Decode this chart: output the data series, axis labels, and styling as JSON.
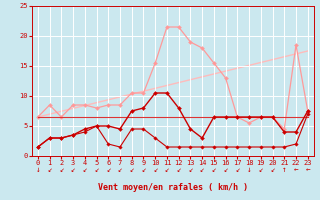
{
  "background_color": "#cbe8ef",
  "grid_color": "#ffffff",
  "xlabel": "Vent moyen/en rafales ( km/h )",
  "xlim": [
    -0.5,
    23.5
  ],
  "ylim": [
    0,
    25
  ],
  "xticks": [
    0,
    1,
    2,
    3,
    4,
    5,
    6,
    7,
    8,
    9,
    10,
    11,
    12,
    13,
    14,
    15,
    16,
    17,
    18,
    19,
    20,
    21,
    22,
    23
  ],
  "yticks": [
    0,
    5,
    10,
    15,
    20,
    25
  ],
  "series": [
    {
      "label": "diagonal_light",
      "x": [
        0,
        23
      ],
      "y": [
        6.5,
        17.5
      ],
      "color": "#ffbbbb",
      "linewidth": 1.0,
      "marker": null,
      "zorder": 1
    },
    {
      "label": "line1_light_pink_upper",
      "x": [
        0,
        1,
        2,
        3,
        4,
        5,
        6,
        7,
        8,
        9,
        10,
        11,
        12,
        13,
        14,
        15,
        16,
        17,
        18,
        19,
        20,
        21,
        22,
        23
      ],
      "y": [
        6.5,
        8.5,
        6.5,
        8.5,
        8.5,
        8.0,
        8.5,
        8.5,
        10.5,
        10.5,
        15.5,
        21.5,
        21.5,
        19.0,
        18.0,
        15.5,
        13.0,
        6.5,
        5.5,
        6.5,
        6.5,
        4.5,
        18.5,
        7.5
      ],
      "color": "#ff9999",
      "linewidth": 0.9,
      "marker": "D",
      "markersize": 2.0,
      "zorder": 2
    },
    {
      "label": "line2_medium_flat",
      "x": [
        0,
        1,
        2,
        3,
        4,
        5,
        6,
        7,
        8,
        9,
        10,
        11,
        12,
        13,
        14,
        15,
        16,
        17,
        18,
        19,
        20,
        21,
        22,
        23
      ],
      "y": [
        6.5,
        6.5,
        6.5,
        6.5,
        6.5,
        6.5,
        6.5,
        6.5,
        6.5,
        6.5,
        6.5,
        6.5,
        6.5,
        6.5,
        6.5,
        6.5,
        6.5,
        6.5,
        6.5,
        6.5,
        6.5,
        6.5,
        6.5,
        6.5
      ],
      "color": "#dd3333",
      "linewidth": 0.8,
      "marker": null,
      "zorder": 2
    },
    {
      "label": "line3_dark_red_main",
      "x": [
        0,
        1,
        2,
        3,
        4,
        5,
        6,
        7,
        8,
        9,
        10,
        11,
        12,
        13,
        14,
        15,
        16,
        17,
        18,
        19,
        20,
        21,
        22,
        23
      ],
      "y": [
        1.5,
        3.0,
        3.0,
        3.5,
        4.5,
        5.0,
        5.0,
        4.5,
        7.5,
        8.0,
        10.5,
        10.5,
        8.0,
        4.5,
        3.0,
        6.5,
        6.5,
        6.5,
        6.5,
        6.5,
        6.5,
        4.0,
        4.0,
        7.5
      ],
      "color": "#cc0000",
      "linewidth": 1.0,
      "marker": "D",
      "markersize": 2.0,
      "zorder": 3
    },
    {
      "label": "line4_bottom_flat",
      "x": [
        0,
        1,
        2,
        3,
        4,
        5,
        6,
        7,
        8,
        9,
        10,
        11,
        12,
        13,
        14,
        15,
        16,
        17,
        18,
        19,
        20,
        21,
        22,
        23
      ],
      "y": [
        1.5,
        3.0,
        3.0,
        3.5,
        4.0,
        5.0,
        2.0,
        1.5,
        4.5,
        4.5,
        3.0,
        1.5,
        1.5,
        1.5,
        1.5,
        1.5,
        1.5,
        1.5,
        1.5,
        1.5,
        1.5,
        1.5,
        2.0,
        7.0
      ],
      "color": "#cc0000",
      "linewidth": 0.8,
      "marker": "D",
      "markersize": 1.8,
      "zorder": 2
    }
  ],
  "arrow_chars": [
    "↓",
    "↙",
    "↙",
    "↙",
    "↙",
    "↙",
    "↙",
    "↙",
    "↙",
    "↙",
    "↙",
    "↙",
    "↙",
    "↙",
    "↙",
    "↙",
    "↙",
    "↙",
    "↓",
    "↙",
    "↙",
    "↑",
    "←",
    "←"
  ],
  "axis_fontsize": 6.0,
  "tick_fontsize": 5.0
}
